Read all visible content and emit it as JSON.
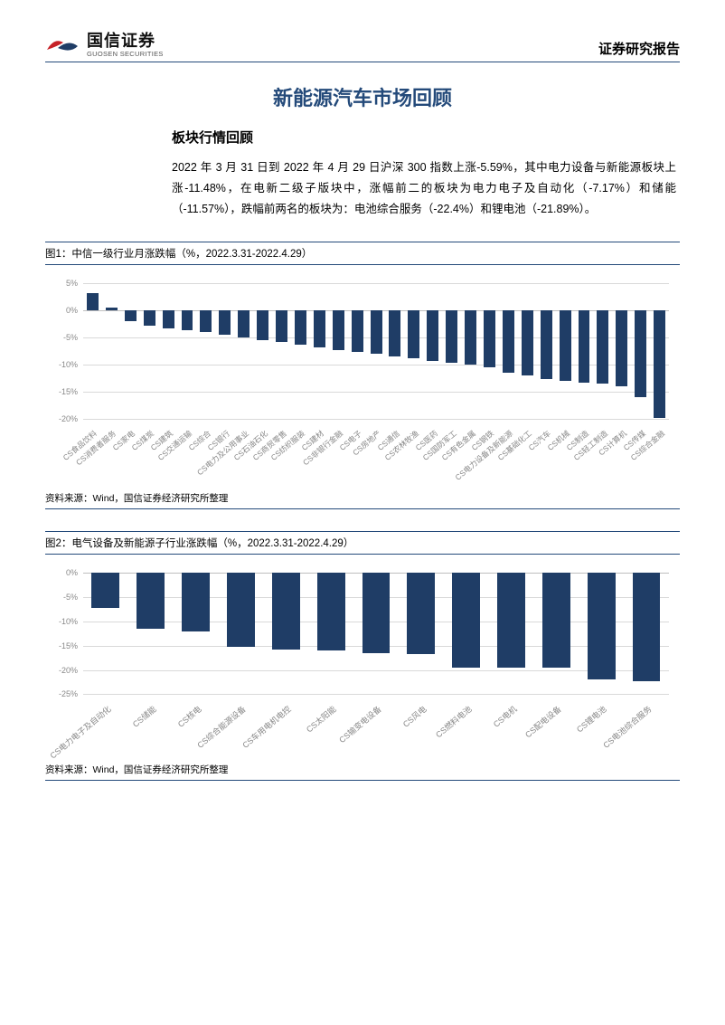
{
  "header": {
    "company_zh": "国信证券",
    "company_en": "GUOSEN SECURITIES",
    "report_type": "证券研究报告"
  },
  "title": "新能源汽车市场回顾",
  "section1": {
    "heading": "板块行情回顾",
    "paragraph": "2022 年 3 月 31 日到 2022 年 4 月 29 日沪深 300 指数上涨-5.59%，其中电力设备与新能源板块上涨-11.48%，在电新二级子版块中，涨幅前二的板块为电力电子及自动化（-7.17%）和储能（-11.57%），跌幅前两名的板块为：电池综合服务（-22.4%）和锂电池（-21.89%）。"
  },
  "figure1": {
    "caption": "图1：中信一级行业月涨跌幅（%，2022.3.31-2022.4.29）",
    "source": "资料来源：Wind，国信证券经济研究所整理",
    "type": "bar",
    "ylim": [
      -20,
      5
    ],
    "yticks": [
      5,
      0,
      -5,
      -10,
      -15,
      -20
    ],
    "ytick_labels": [
      "5%",
      "0%",
      "-5%",
      "-10%",
      "-15%",
      "-20%"
    ],
    "grid_color": "#d9d9d9",
    "zero_line_color": "#bfbfbf",
    "bar_color": "#1f3d66",
    "label_color": "#888888",
    "label_fontsize": 8.5,
    "tick_fontsize": 9,
    "background_color": "#ffffff",
    "categories": [
      "CS食品饮料",
      "CS消费者服务",
      "CS家电",
      "CS煤炭",
      "CS建筑",
      "CS交通运输",
      "CS综合",
      "CS银行",
      "CS电力及公用事业",
      "CS石油石化",
      "CS商贸零售",
      "CS纺织服装",
      "CS建材",
      "CS非银行金融",
      "CS电子",
      "CS房地产",
      "CS通信",
      "CS农林牧渔",
      "CS医药",
      "CS国防军工",
      "CS有色金属",
      "CS钢铁",
      "CS电力设备及新能源",
      "CS基础化工",
      "CS汽车",
      "CS机械",
      "CS制造",
      "CS轻工制造",
      "CS计算机",
      "CS传媒",
      "CS综合金融"
    ],
    "values": [
      3.2,
      0.6,
      -2.0,
      -2.8,
      -3.2,
      -3.6,
      -4.0,
      -4.4,
      -5.0,
      -5.4,
      -5.8,
      -6.2,
      -6.8,
      -7.2,
      -7.6,
      -8.0,
      -8.4,
      -8.8,
      -9.2,
      -9.6,
      -10.0,
      -10.4,
      -11.5,
      -12.0,
      -12.6,
      -13.0,
      -13.2,
      -13.5,
      -14.0,
      -16.0,
      -19.8
    ]
  },
  "figure2": {
    "caption": "图2：电气设备及新能源子行业涨跌幅（%，2022.3.31-2022.4.29）",
    "source": "资料来源：Wind，国信证券经济研究所整理",
    "type": "bar",
    "ylim": [
      -25,
      0
    ],
    "yticks": [
      0,
      -5,
      -10,
      -15,
      -20,
      -25
    ],
    "ytick_labels": [
      "0%",
      "-5%",
      "-10%",
      "-15%",
      "-20%",
      "-25%"
    ],
    "grid_color": "#d9d9d9",
    "zero_line_color": "#bfbfbf",
    "bar_color": "#1f3d66",
    "label_color": "#888888",
    "label_fontsize": 9,
    "tick_fontsize": 9,
    "background_color": "#ffffff",
    "categories": [
      "CS电力电子及自动化",
      "CS储能",
      "CS核电",
      "CS综合能源设备",
      "CS车用电机电控",
      "CS太阳能",
      "CS输变电设备",
      "CS风电",
      "CS燃料电池",
      "CS电机",
      "CS配电设备",
      "CS锂电池",
      "CS电池综合服务"
    ],
    "values": [
      -7.17,
      -11.57,
      -12.0,
      -15.2,
      -15.8,
      -16.0,
      -16.5,
      -16.8,
      -19.5,
      -19.5,
      -19.6,
      -21.89,
      -22.4
    ]
  }
}
